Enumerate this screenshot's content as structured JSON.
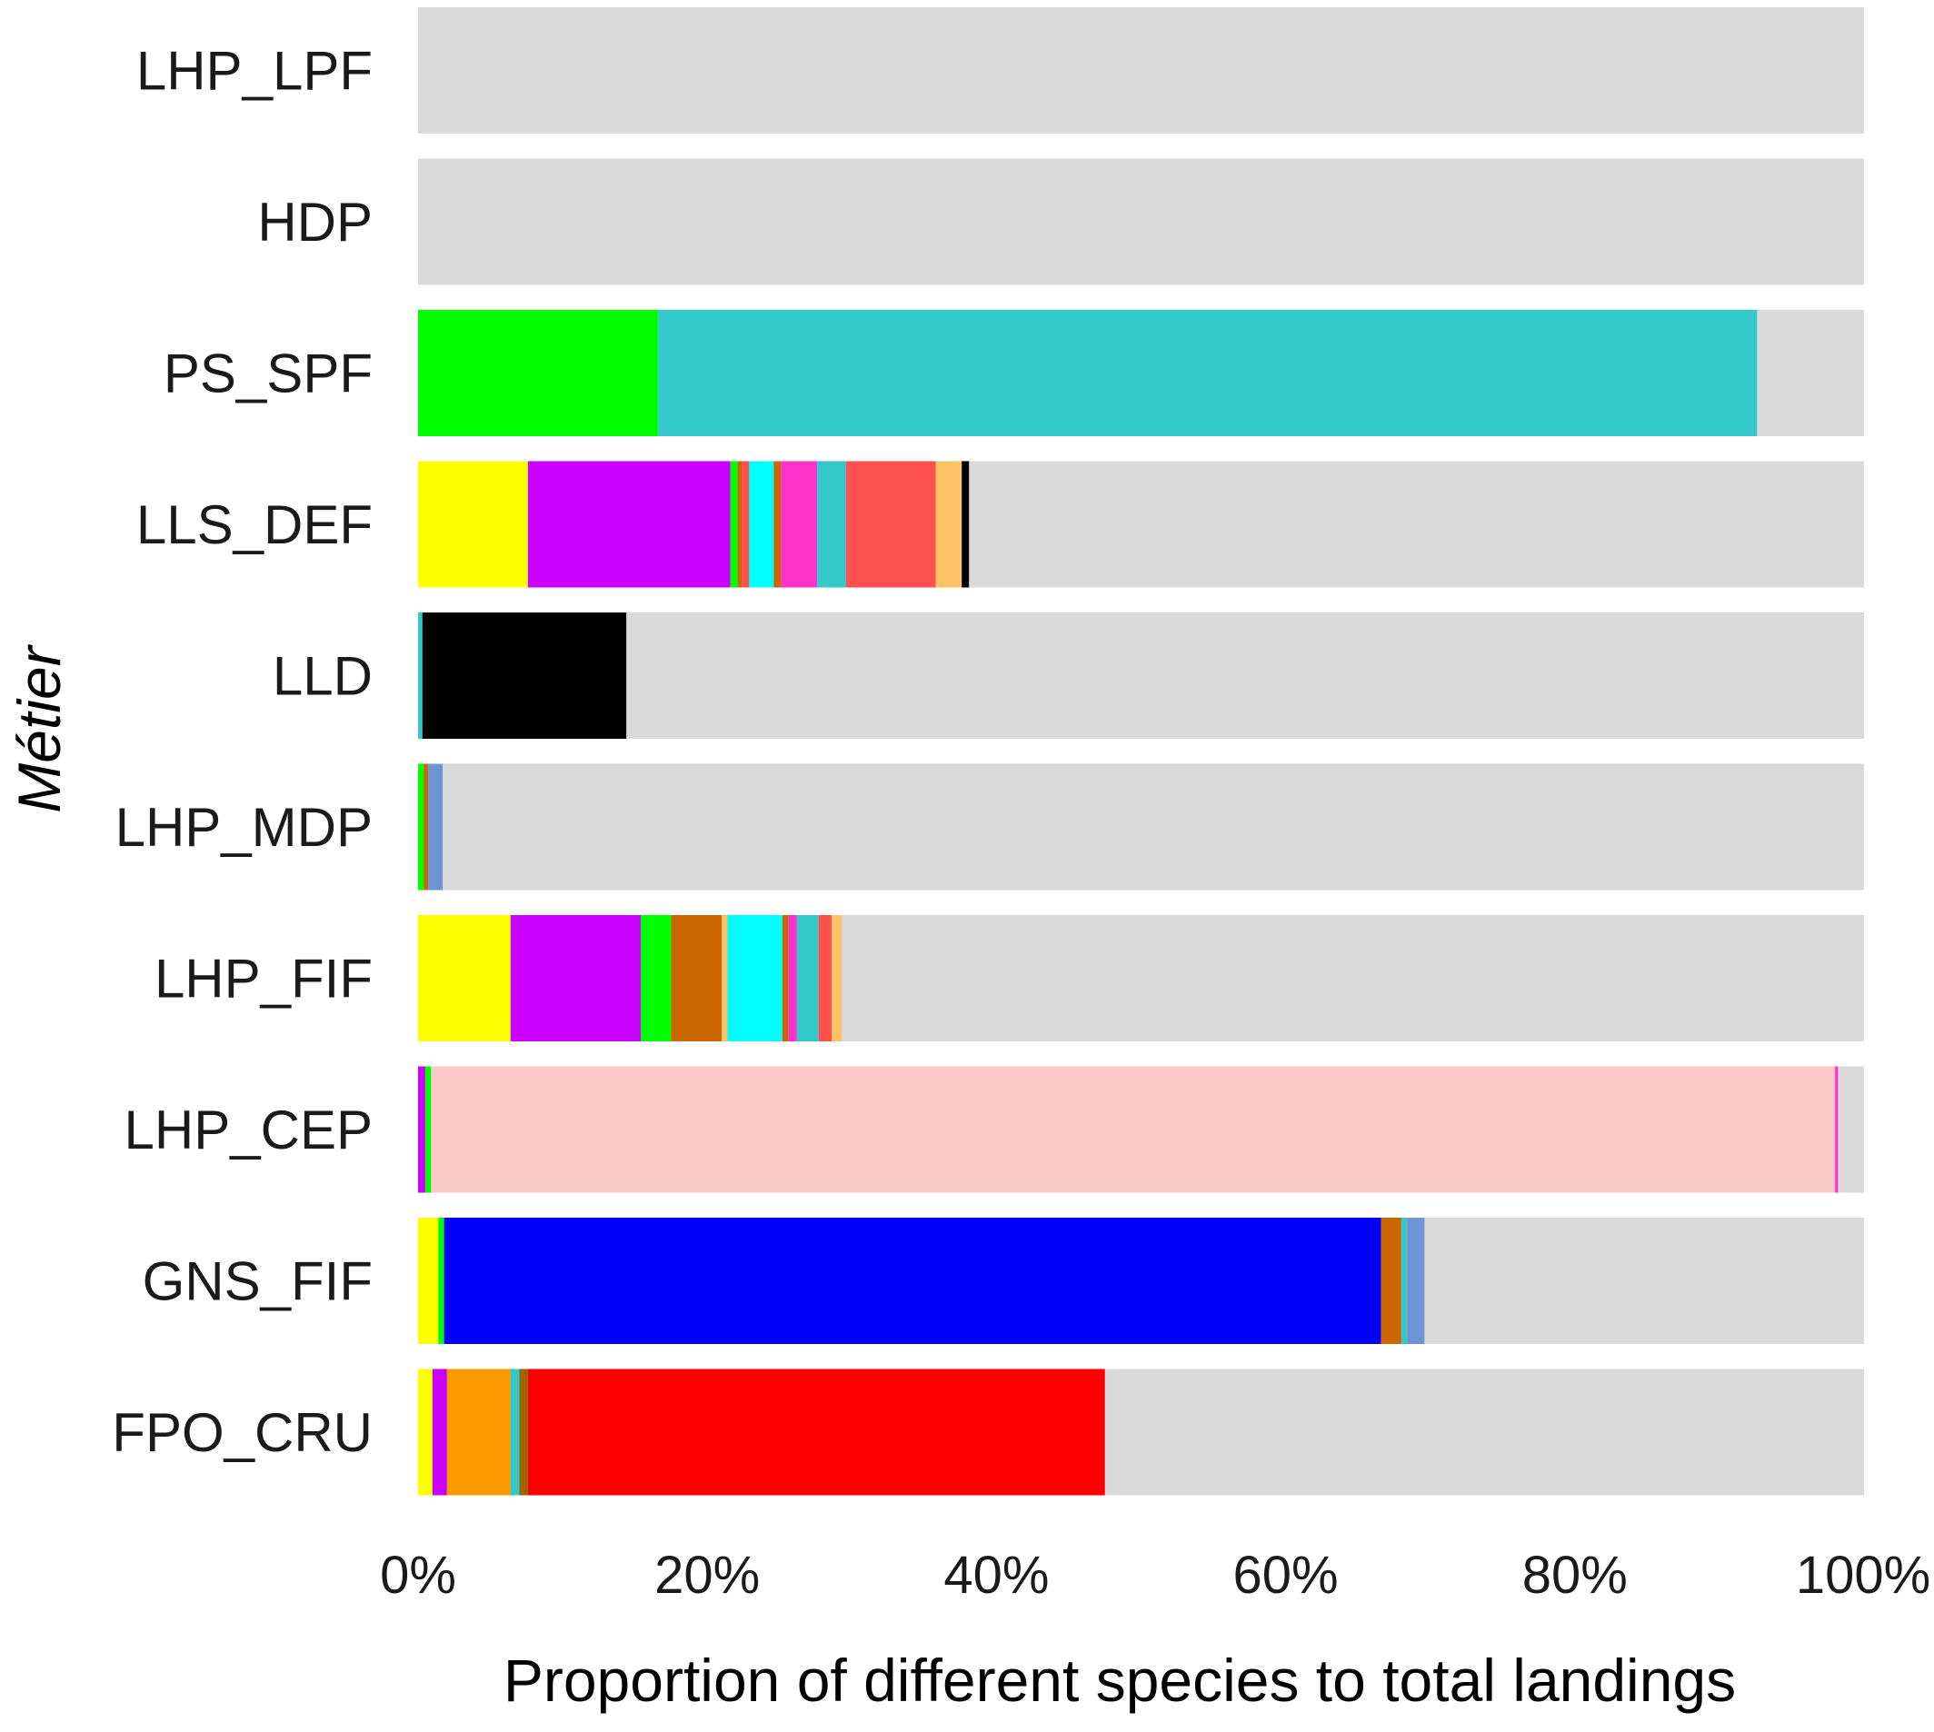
{
  "chart_data": {
    "type": "bar",
    "orientation": "horizontal",
    "stacked": true,
    "xlabel": "Proportion of different species to total landings",
    "ylabel": "Métier",
    "xlim": [
      0,
      100
    ],
    "x_ticks": [
      "0%",
      "20%",
      "40%",
      "60%",
      "80%",
      "100%"
    ],
    "background_color": "#d9d9d9",
    "categories": [
      "LHP_LPF",
      "HDP",
      "PS_SPF",
      "LLS_DEF",
      "LLD",
      "LHP_MDP",
      "LHP_FIF",
      "LHP_CEP",
      "GNS_FIF",
      "FPO_CRU"
    ],
    "bars": [
      {
        "category": "LHP_LPF",
        "segments": []
      },
      {
        "category": "HDP",
        "segments": []
      },
      {
        "category": "PS_SPF",
        "segments": [
          {
            "value": 16.6,
            "color": "#00ff00"
          },
          {
            "value": 76.0,
            "color": "#33c9cc"
          }
        ]
      },
      {
        "category": "LLS_DEF",
        "segments": [
          {
            "value": 7.6,
            "color": "#ffff00"
          },
          {
            "value": 14.0,
            "color": "#cc00ff"
          },
          {
            "value": 0.5,
            "color": "#00ff00"
          },
          {
            "value": 0.3,
            "color": "#cc6600"
          },
          {
            "value": 0.5,
            "color": "#ff5050"
          },
          {
            "value": 1.7,
            "color": "#00ffff"
          },
          {
            "value": 0.5,
            "color": "#cc6600"
          },
          {
            "value": 2.5,
            "color": "#ff33cc"
          },
          {
            "value": 2.0,
            "color": "#33c9cc"
          },
          {
            "value": 6.2,
            "color": "#ff5050"
          },
          {
            "value": 1.8,
            "color": "#ffc266"
          },
          {
            "value": 0.5,
            "color": "#000000"
          }
        ]
      },
      {
        "category": "LLD",
        "segments": [
          {
            "value": 0.3,
            "color": "#33c9cc"
          },
          {
            "value": 14.1,
            "color": "#000000"
          }
        ]
      },
      {
        "category": "LHP_MDP",
        "segments": [
          {
            "value": 0.4,
            "color": "#00ff00"
          },
          {
            "value": 0.3,
            "color": "#cc6600"
          },
          {
            "value": 1.0,
            "color": "#6f94d6"
          }
        ]
      },
      {
        "category": "LHP_FIF",
        "segments": [
          {
            "value": 6.4,
            "color": "#ffff00"
          },
          {
            "value": 9.0,
            "color": "#cc00ff"
          },
          {
            "value": 2.1,
            "color": "#00ff00"
          },
          {
            "value": 3.5,
            "color": "#cc6600"
          },
          {
            "value": 0.4,
            "color": "#ffc266"
          },
          {
            "value": 3.8,
            "color": "#00ffff"
          },
          {
            "value": 0.4,
            "color": "#cc6600"
          },
          {
            "value": 0.6,
            "color": "#ff33cc"
          },
          {
            "value": 1.5,
            "color": "#33c9cc"
          },
          {
            "value": 0.9,
            "color": "#ff5050"
          },
          {
            "value": 0.7,
            "color": "#ffc266"
          }
        ]
      },
      {
        "category": "LHP_CEP",
        "segments": [
          {
            "value": 0.5,
            "color": "#cc00ff"
          },
          {
            "value": 0.4,
            "color": "#00ff00"
          },
          {
            "value": 97.1,
            "color": "#fbc8c8"
          },
          {
            "value": 0.2,
            "color": "#ff33cc"
          }
        ]
      },
      {
        "category": "GNS_FIF",
        "segments": [
          {
            "value": 1.4,
            "color": "#ffff00"
          },
          {
            "value": 0.4,
            "color": "#00ff00"
          },
          {
            "value": 64.8,
            "color": "#0000ff"
          },
          {
            "value": 1.4,
            "color": "#cc6600"
          },
          {
            "value": 0.4,
            "color": "#33c9cc"
          },
          {
            "value": 1.2,
            "color": "#6f94d6"
          }
        ]
      },
      {
        "category": "FPO_CRU",
        "segments": [
          {
            "value": 1.0,
            "color": "#ffff00"
          },
          {
            "value": 1.0,
            "color": "#cc00ff"
          },
          {
            "value": 4.4,
            "color": "#ff9900"
          },
          {
            "value": 0.6,
            "color": "#33c9cc"
          },
          {
            "value": 0.6,
            "color": "#996600"
          },
          {
            "value": 39.9,
            "color": "#ff0000"
          }
        ]
      }
    ]
  }
}
